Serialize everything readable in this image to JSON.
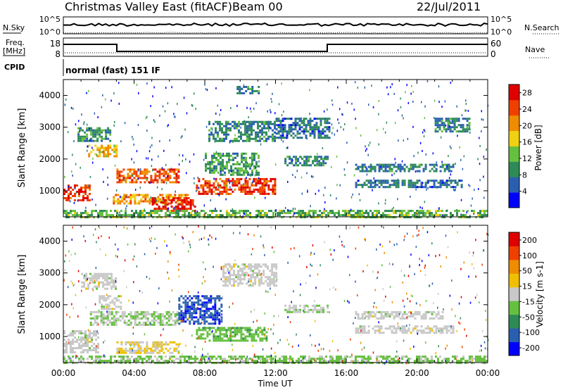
{
  "header": {
    "title": "Christmas Valley East (fitACF)",
    "beam": "Beam 00",
    "date": "22/Jul/2011"
  },
  "top_panels": {
    "nsky_label": "N.Sky",
    "nsearch_label": "N.Search",
    "nsky_ticks": [
      "10^5",
      "10^0"
    ],
    "freq_label_1": "Freq.",
    "freq_label_2": "[MHz]",
    "freq_ticks": [
      "18",
      "8"
    ],
    "nave_label": "Nave",
    "nave_ticks": [
      "60",
      "0"
    ],
    "cpid_label": "CPID",
    "cpid_value": "normal (fast) 151 IF"
  },
  "colors": {
    "power": [
      "#0000ff",
      "#2a5fb0",
      "#2e8b57",
      "#66c040",
      "#f0d010",
      "#f08c00",
      "#f04000",
      "#e00000"
    ],
    "velocity": [
      "#e00000",
      "#f04000",
      "#f08c00",
      "#f0c000",
      "#c8c8c8",
      "#66c040",
      "#2e8b57",
      "#2a5fb0",
      "#0000ff"
    ]
  },
  "chart_data": [
    {
      "type": "heatmap",
      "title": "",
      "xlabel": "Time UT",
      "ylabel": "Slant Range [km]",
      "xlim": [
        "00:00",
        "24:00"
      ],
      "ylim": [
        180,
        4500
      ],
      "x_ticks": [
        "00:00",
        "04:00",
        "08:00",
        "12:00",
        "16:00",
        "20:00",
        "00:00"
      ],
      "y_ticks": [
        1000,
        2000,
        3000,
        4000
      ],
      "colorbar_label": "Power [dB]",
      "colorbar_ticks": [
        4,
        8,
        12,
        16,
        20,
        24,
        28
      ],
      "colorbar_range": [
        0,
        30
      ],
      "regions": [
        {
          "t": [
            0.0,
            1.5
          ],
          "range": [
            700,
            1200
          ],
          "value": 26
        },
        {
          "t": [
            0.8,
            2.6
          ],
          "range": [
            2550,
            3000
          ],
          "value": 9
        },
        {
          "t": [
            1.4,
            3.0
          ],
          "range": [
            2100,
            2450
          ],
          "value": 18
        },
        {
          "t": [
            3.0,
            6.5
          ],
          "range": [
            1300,
            1700
          ],
          "value": 24
        },
        {
          "t": [
            2.8,
            7.0
          ],
          "range": [
            600,
            900
          ],
          "value": 20
        },
        {
          "t": [
            5.0,
            7.5
          ],
          "range": [
            400,
            800
          ],
          "value": 27
        },
        {
          "t": [
            7.5,
            12.0
          ],
          "range": [
            900,
            1400
          ],
          "value": 25
        },
        {
          "t": [
            8.0,
            11.0
          ],
          "range": [
            1500,
            2200
          ],
          "value": 10
        },
        {
          "t": [
            8.2,
            12.0
          ],
          "range": [
            2600,
            3200
          ],
          "value": 8
        },
        {
          "t": [
            9.8,
            11.0
          ],
          "range": [
            4100,
            4300
          ],
          "value": 8
        },
        {
          "t": [
            12.0,
            15.0
          ],
          "range": [
            2700,
            3300
          ],
          "value": 7
        },
        {
          "t": [
            12.5,
            15.0
          ],
          "range": [
            1800,
            2100
          ],
          "value": 8
        },
        {
          "t": [
            16.5,
            22.0
          ],
          "range": [
            1600,
            1850
          ],
          "value": 8
        },
        {
          "t": [
            16.5,
            22.5
          ],
          "range": [
            1150,
            1350
          ],
          "value": 7
        },
        {
          "t": [
            21.0,
            23.0
          ],
          "range": [
            2900,
            3300
          ],
          "value": 8
        },
        {
          "t": [
            0.0,
            24.0
          ],
          "range": [
            200,
            400
          ],
          "value": 12
        }
      ]
    },
    {
      "type": "heatmap",
      "title": "",
      "xlabel": "Time UT",
      "ylabel": "Slant Range [km]",
      "xlim": [
        "00:00",
        "24:00"
      ],
      "ylim": [
        180,
        4500
      ],
      "x_ticks": [
        "00:00",
        "04:00",
        "08:00",
        "12:00",
        "16:00",
        "20:00",
        "00:00"
      ],
      "y_ticks": [
        1000,
        2000,
        3000,
        4000
      ],
      "colorbar_label": "Velocity [m s-1]",
      "colorbar_ticks": [
        200,
        100,
        50,
        15,
        -15,
        -50,
        -100,
        -200
      ],
      "colorbar_range": [
        -250,
        250
      ],
      "regions": [
        {
          "t": [
            0.0,
            2.0
          ],
          "range": [
            500,
            1200
          ],
          "value": 0
        },
        {
          "t": [
            1.0,
            3.0
          ],
          "range": [
            2500,
            3000
          ],
          "value": 0
        },
        {
          "t": [
            1.5,
            6.5
          ],
          "range": [
            1400,
            1800
          ],
          "value": 30
        },
        {
          "t": [
            2.0,
            3.2
          ],
          "range": [
            1900,
            2300
          ],
          "value": 0
        },
        {
          "t": [
            3.0,
            6.5
          ],
          "range": [
            500,
            850
          ],
          "value": -30
        },
        {
          "t": [
            6.5,
            9.0
          ],
          "range": [
            1400,
            2300
          ],
          "value": 180
        },
        {
          "t": [
            7.5,
            11.5
          ],
          "range": [
            900,
            1300
          ],
          "value": 60
        },
        {
          "t": [
            9.0,
            12.0
          ],
          "range": [
            2600,
            3300
          ],
          "value": 0
        },
        {
          "t": [
            12.5,
            15.0
          ],
          "range": [
            1800,
            2000
          ],
          "value": 20
        },
        {
          "t": [
            16.5,
            21.5
          ],
          "range": [
            1600,
            1800
          ],
          "value": 0
        },
        {
          "t": [
            16.5,
            22.0
          ],
          "range": [
            1150,
            1350
          ],
          "value": 0
        },
        {
          "t": [
            0.0,
            24.0
          ],
          "range": [
            200,
            400
          ],
          "value": 40
        }
      ]
    }
  ]
}
